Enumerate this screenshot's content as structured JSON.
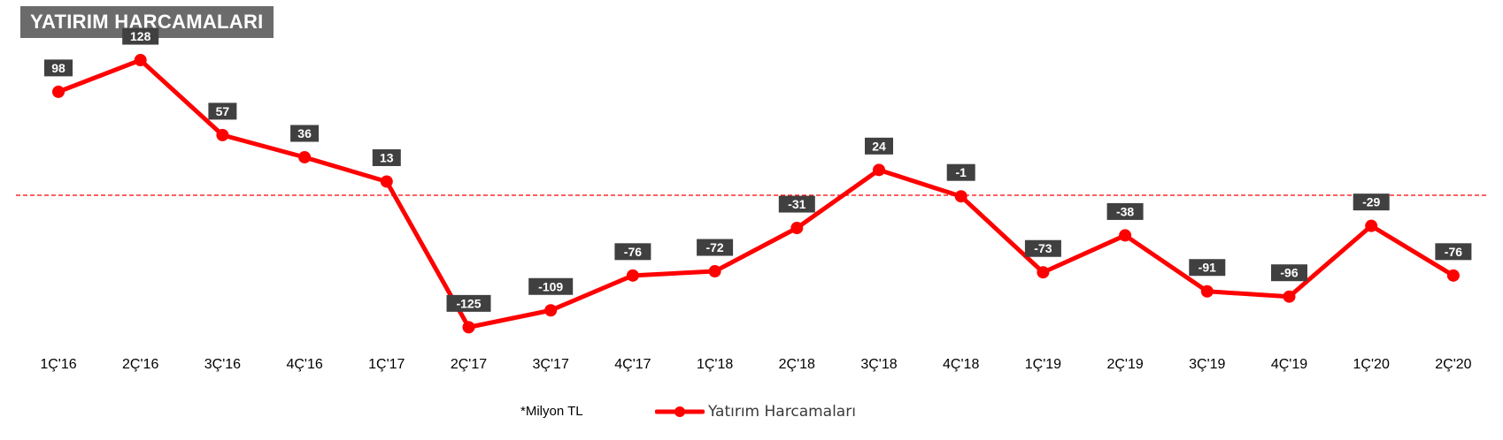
{
  "title": "YATIRIM HARCAMALARI",
  "note": "*Milyon TL",
  "colors": {
    "line": "#ff0000",
    "label_bg": "#404040",
    "title_bg": "#6b6b6b",
    "zero_line": "#ff0000"
  },
  "chart_data": {
    "type": "line",
    "title": "YATIRIM HARCAMALARI",
    "categories": [
      "1Ç'16",
      "2Ç'16",
      "3Ç'16",
      "4Ç'16",
      "1Ç'17",
      "2Ç'17",
      "3Ç'17",
      "4Ç'17",
      "1Ç'18",
      "2Ç'18",
      "3Ç'18",
      "4Ç'18",
      "1Ç'19",
      "2Ç'19",
      "3Ç'19",
      "4Ç'19",
      "1Ç'20",
      "2Ç'20"
    ],
    "series": [
      {
        "name": "Yatırım Harcamaları",
        "values": [
          98,
          128,
          57,
          36,
          13,
          -125,
          -109,
          -76,
          -72,
          -31,
          24,
          -1,
          -73,
          -38,
          -91,
          -96,
          -29,
          -76
        ]
      }
    ],
    "reference_line": 0,
    "grid": false,
    "legend_position": "bottom",
    "data_labels": true
  }
}
